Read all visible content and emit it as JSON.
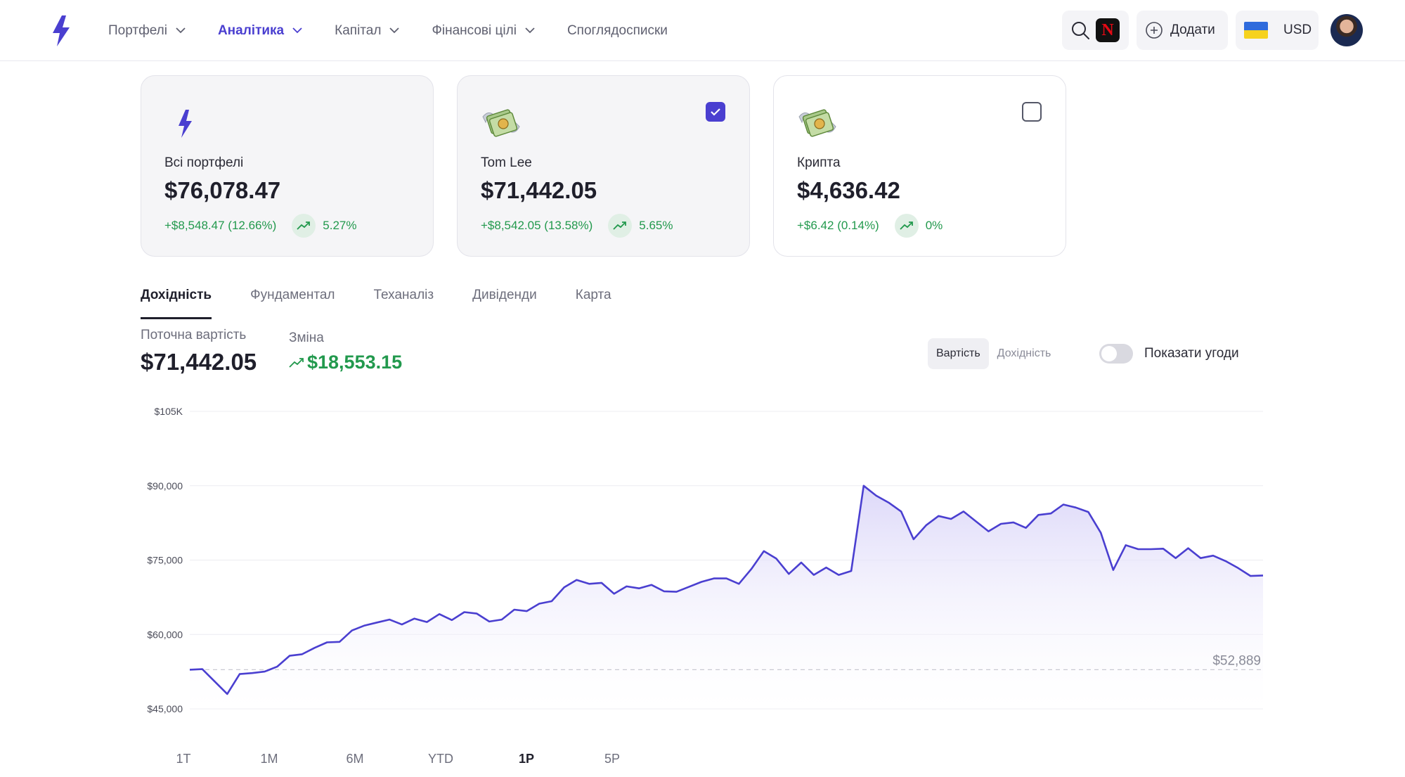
{
  "nav": {
    "items": [
      {
        "label": "Портфелі",
        "has_dropdown": true,
        "active": false
      },
      {
        "label": "Аналітика",
        "has_dropdown": true,
        "active": true
      },
      {
        "label": "Капітал",
        "has_dropdown": true,
        "active": false
      },
      {
        "label": "Фінансові цілі",
        "has_dropdown": true,
        "active": false
      },
      {
        "label": "Споглядосписки",
        "has_dropdown": false,
        "active": false
      }
    ],
    "add_label": "Додати",
    "currency": "USD",
    "netflix_letter": "N"
  },
  "cards": [
    {
      "name": "Всі портфелі",
      "value": "$76,078.47",
      "change": "+$8,548.47 (12.66%)",
      "trend": "5.27%",
      "icon": "bolt-icon",
      "checkbox": "none"
    },
    {
      "name": "Tom Lee",
      "value": "$71,442.05",
      "change": "+$8,542.05 (13.58%)",
      "trend": "5.65%",
      "icon": "money-with-wings-icon",
      "checkbox": "checked"
    },
    {
      "name": "Крипта",
      "value": "$4,636.42",
      "change": "+$6.42 (0.14%)",
      "trend": "0%",
      "icon": "money-with-wings-icon",
      "checkbox": "unchecked"
    }
  ],
  "tabs": [
    {
      "label": "Дохідність",
      "active": true
    },
    {
      "label": "Фундаментал",
      "active": false
    },
    {
      "label": "Теханаліз",
      "active": false
    },
    {
      "label": "Дивіденди",
      "active": false
    },
    {
      "label": "Карта",
      "active": false
    }
  ],
  "summary": {
    "current_label": "Поточна вартість",
    "current_value": "$71,442.05",
    "change_label": "Зміна",
    "change_value": "$18,553.15"
  },
  "controls": {
    "segments": [
      {
        "label": "Вартість",
        "active": true
      },
      {
        "label": "Дохідність",
        "active": false
      }
    ],
    "toggle_label": "Показати угоди",
    "toggle_on": false
  },
  "ranges": [
    {
      "label": "1Т",
      "active": false
    },
    {
      "label": "1М",
      "active": false
    },
    {
      "label": "6М",
      "active": false
    },
    {
      "label": "YTD",
      "active": false
    },
    {
      "label": "1Р",
      "active": true
    },
    {
      "label": "5Р",
      "active": false
    }
  ],
  "colors": {
    "accent": "#4a3fd0",
    "positive": "#22994d",
    "line": "#4a3fd0",
    "fill": "#e6e3fa"
  },
  "chart_data": {
    "type": "area",
    "y_tick_labels": [
      "$105K",
      "$90,000",
      "$75,000",
      "$60,000",
      "$45,000"
    ],
    "y_ticks": [
      105000,
      90000,
      75000,
      60000,
      45000
    ],
    "ylim": [
      45000,
      105000
    ],
    "baseline": 52889,
    "baseline_label": "$52,889",
    "grid": true,
    "legend": "none",
    "series": [
      {
        "values": [
          52889,
          53000,
          50500,
          48000,
          52000,
          52200,
          52500,
          53500,
          55700,
          56000,
          57300,
          58400,
          58500,
          60800,
          61800,
          62400,
          63000,
          62000,
          63200,
          62500,
          64100,
          62900,
          64500,
          64200,
          62600,
          63000,
          65000,
          64700,
          66200,
          66700,
          69500,
          71000,
          70200,
          70400,
          68200,
          69700,
          69300,
          70000,
          68700,
          68600,
          69600,
          70600,
          71300,
          71300,
          70200,
          73200,
          76800,
          75300,
          72200,
          74500,
          72000,
          73500,
          72000,
          72800,
          90000,
          88000,
          86600,
          84800,
          79200,
          82000,
          83900,
          83300,
          84800,
          82800,
          80800,
          82300,
          82600,
          81500,
          84100,
          84400,
          86200,
          85600,
          84700,
          80500,
          73000,
          78000,
          77200,
          77200,
          77300,
          75400,
          77400,
          75400,
          75900,
          74800,
          73400,
          71800,
          71900
        ]
      }
    ]
  }
}
